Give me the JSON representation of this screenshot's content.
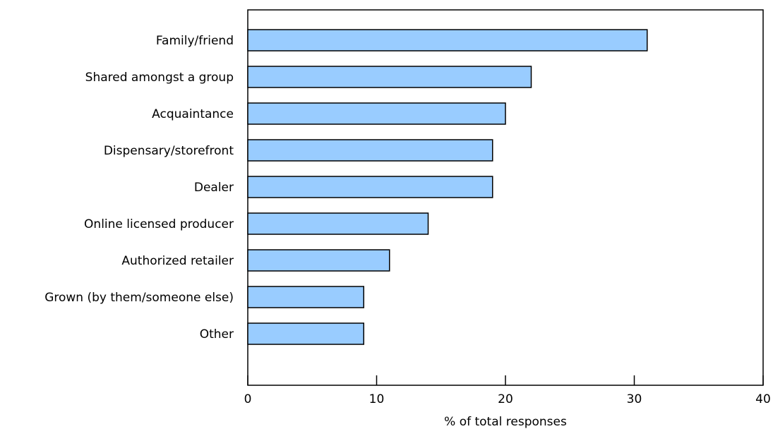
{
  "chart_data": {
    "type": "bar",
    "orientation": "horizontal",
    "categories": [
      "Family/friend",
      "Shared amongst a group",
      "Acquaintance",
      "Dispensary/storefront",
      "Dealer",
      "Online licensed producer",
      "Authorized retailer",
      "Grown (by them/someone else)",
      "Other"
    ],
    "values": [
      31,
      22,
      20,
      19,
      19,
      14,
      11,
      9,
      9
    ],
    "xlabel": "% of total responses",
    "ylabel": "",
    "xlim": [
      0,
      40
    ],
    "xticks": [
      "0",
      "10",
      "20",
      "30",
      "40"
    ],
    "grid": false,
    "bar_color": "#99ccff",
    "bar_edge_color": "#000000"
  }
}
